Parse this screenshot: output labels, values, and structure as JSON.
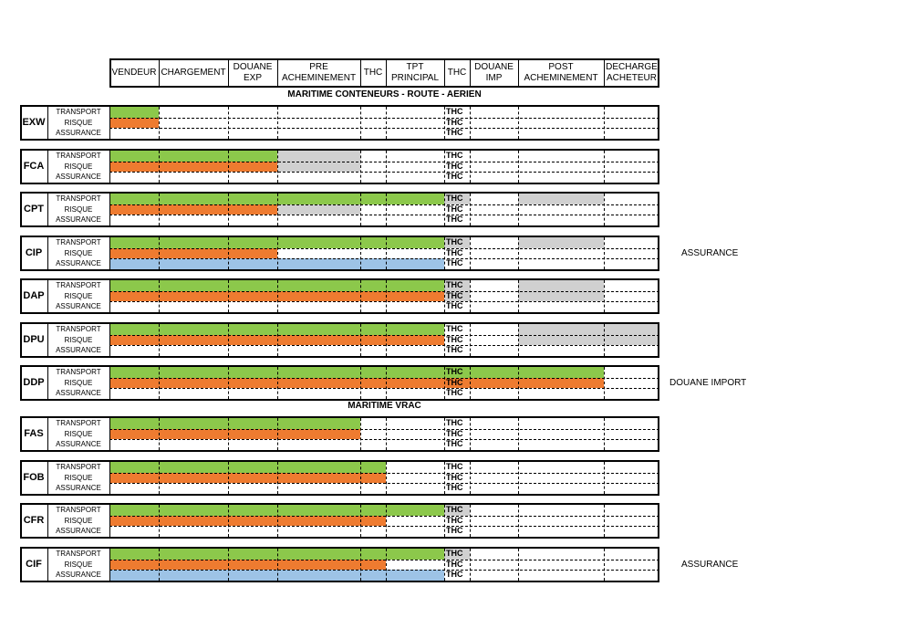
{
  "colors": {
    "green": "#8cc84b",
    "orange": "#ee7b30",
    "blue": "#9dc3e6",
    "gray": "#d0d0d0"
  },
  "header": {
    "columns": [
      "VENDEUR",
      "CHARGEMENT",
      "DOUANE\nEXP",
      "PRE\nACHEMINEMENT",
      "THC",
      "TPT\nPRINCIPAL",
      "THC",
      "DOUANE\nIMP",
      "POST\nACHEMINEMENT",
      "DECHARGE\nACHETEUR"
    ]
  },
  "row_labels": [
    "TRANSPORT",
    "RISQUE",
    "ASSURANCE"
  ],
  "thc_label": "THC",
  "sections": [
    {
      "title": "MARITIME CONTENEURS - ROUTE - AERIEN",
      "terms": [
        {
          "code": "EXW",
          "note": "",
          "fills": [
            [
              [
                "green",
                0,
                1
              ]
            ],
            [
              [
                "orange",
                0,
                1
              ]
            ],
            []
          ]
        },
        {
          "code": "FCA",
          "note": "",
          "fills": [
            [
              [
                "green",
                0,
                3
              ],
              [
                "gray",
                3,
                4
              ]
            ],
            [
              [
                "orange",
                0,
                3
              ],
              [
                "gray",
                3,
                4
              ]
            ],
            []
          ]
        },
        {
          "code": "CPT",
          "note": "",
          "fills": [
            [
              [
                "green",
                0,
                6
              ],
              [
                "gray",
                6,
                7
              ],
              [
                "gray",
                8,
                9
              ]
            ],
            [
              [
                "orange",
                0,
                3
              ],
              [
                "gray",
                3,
                4
              ]
            ],
            []
          ]
        },
        {
          "code": "CIP",
          "note": "ASSURANCE",
          "fills": [
            [
              [
                "green",
                0,
                6
              ],
              [
                "gray",
                6,
                7
              ],
              [
                "gray",
                8,
                9
              ]
            ],
            [
              [
                "orange",
                0,
                3
              ]
            ],
            [
              [
                "blue",
                0,
                3
              ],
              [
                "blue",
                3,
                6
              ]
            ]
          ]
        },
        {
          "code": "DAP",
          "note": "",
          "fills": [
            [
              [
                "green",
                0,
                6
              ],
              [
                "gray",
                6,
                7
              ],
              [
                "gray",
                8,
                9
              ]
            ],
            [
              [
                "orange",
                0,
                6
              ],
              [
                "gray",
                6,
                7
              ],
              [
                "gray",
                8,
                9
              ]
            ],
            []
          ]
        },
        {
          "code": "DPU",
          "note": "",
          "fills": [
            [
              [
                "green",
                0,
                6
              ],
              [
                "gray",
                8,
                10
              ]
            ],
            [
              [
                "orange",
                0,
                6
              ],
              [
                "gray",
                8,
                10
              ]
            ],
            []
          ]
        },
        {
          "code": "DDP",
          "note": "DOUANE IMPORT",
          "fills": [
            [
              [
                "green",
                0,
                9
              ]
            ],
            [
              [
                "orange",
                0,
                9
              ]
            ],
            []
          ]
        }
      ]
    },
    {
      "title": "MARITIME VRAC",
      "terms": [
        {
          "code": "FAS",
          "note": "",
          "fills": [
            [
              [
                "green",
                0,
                4
              ]
            ],
            [
              [
                "orange",
                0,
                4
              ]
            ],
            []
          ]
        },
        {
          "code": "FOB",
          "note": "",
          "fills": [
            [
              [
                "green",
                0,
                5
              ]
            ],
            [
              [
                "orange",
                0,
                5
              ]
            ],
            []
          ]
        },
        {
          "code": "CFR",
          "note": "",
          "fills": [
            [
              [
                "green",
                0,
                6
              ],
              [
                "gray",
                6,
                7
              ]
            ],
            [
              [
                "orange",
                0,
                5
              ]
            ],
            []
          ]
        },
        {
          "code": "CIF",
          "note": "ASSURANCE",
          "fills": [
            [
              [
                "green",
                0,
                6
              ],
              [
                "gray",
                6,
                7
              ]
            ],
            [
              [
                "orange",
                0,
                5
              ]
            ],
            [
              [
                "blue",
                0,
                6
              ]
            ]
          ]
        }
      ]
    }
  ]
}
